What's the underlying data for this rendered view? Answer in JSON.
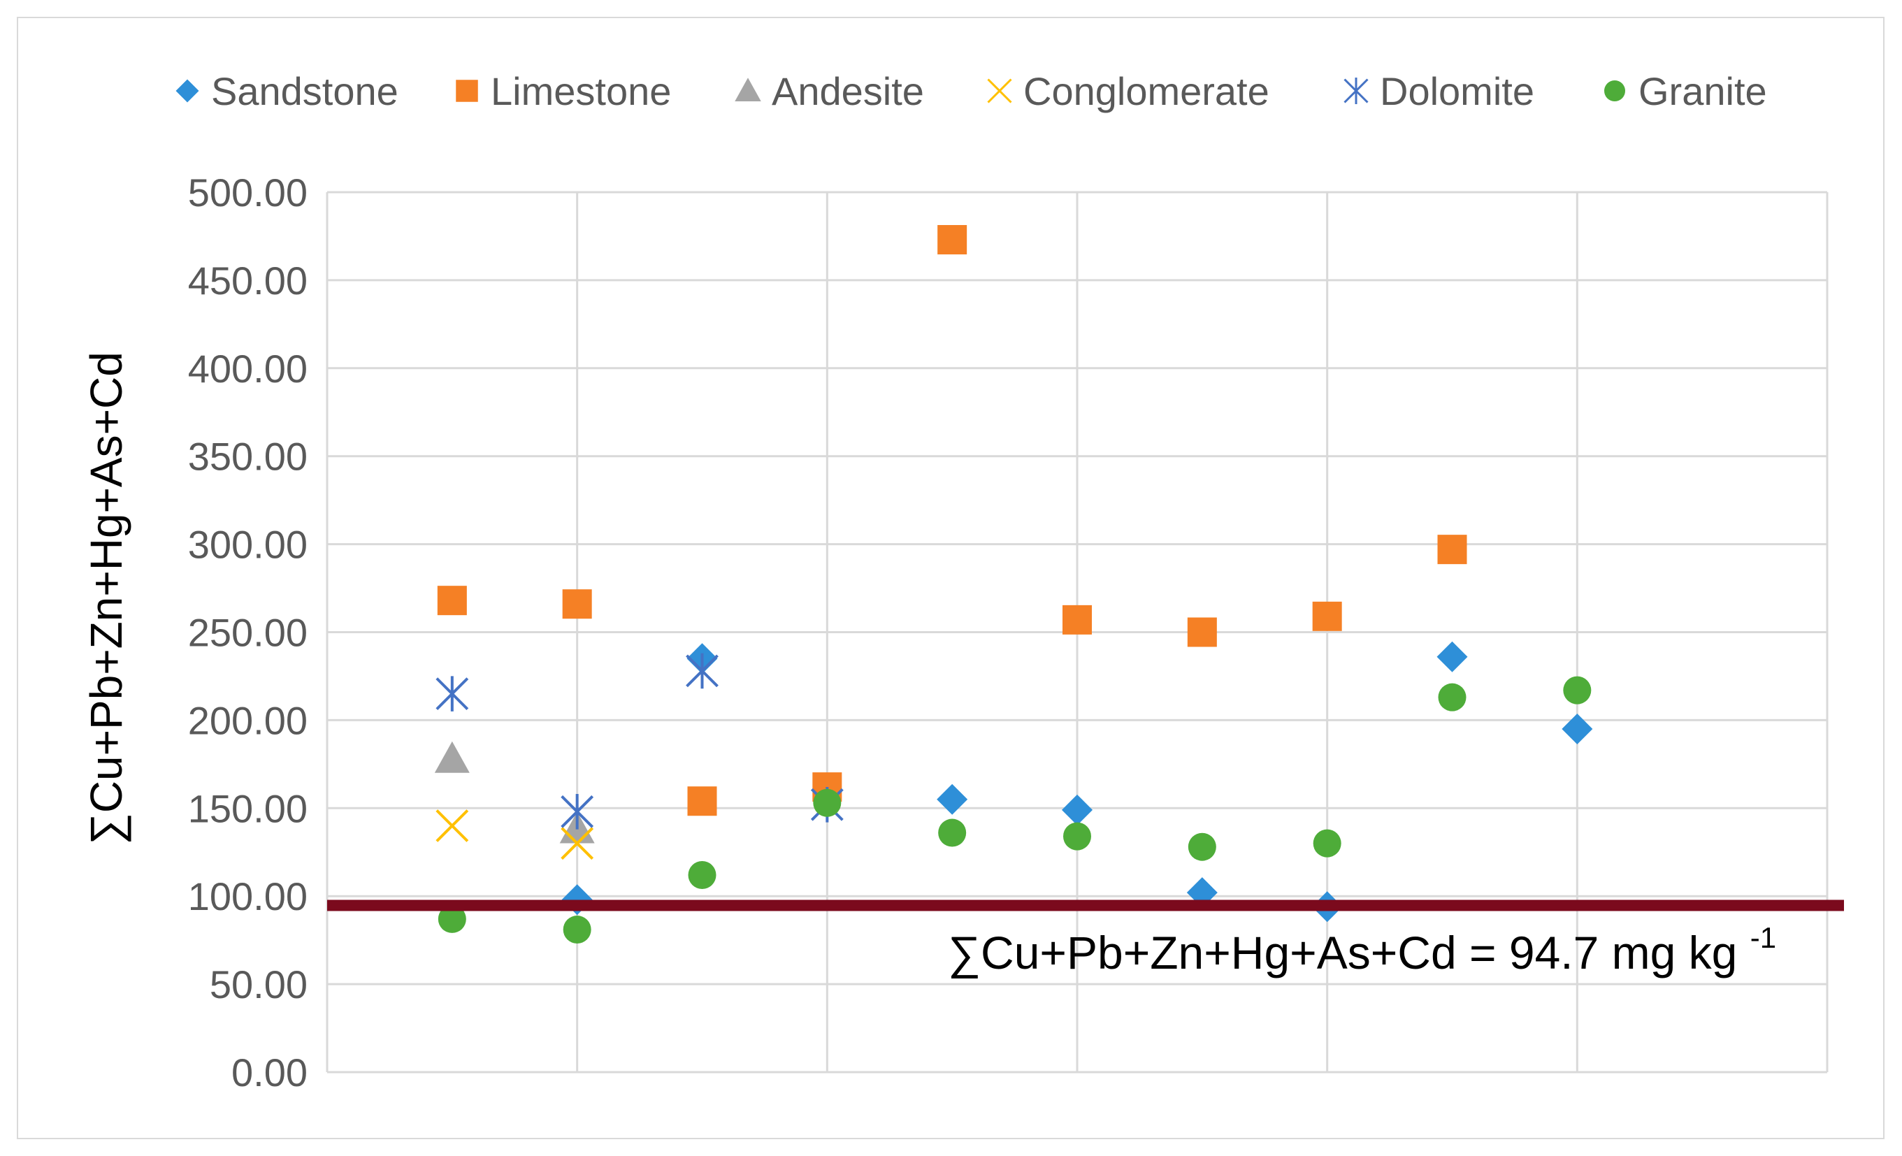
{
  "chart_data": {
    "type": "scatter",
    "title": "",
    "xlabel": "",
    "ylabel": "∑Cu+Pb+Zn+Hg+As+Cd",
    "ylim": [
      0,
      500
    ],
    "xlim": [
      0,
      12
    ],
    "y_ticks": [
      "0.00",
      "50.00",
      "100.00",
      "150.00",
      "200.00",
      "250.00",
      "300.00",
      "350.00",
      "400.00",
      "450.00",
      "500.00"
    ],
    "grid": true,
    "legend_position": "top",
    "threshold": {
      "value": 94.7,
      "label_main": "∑Cu+Pb+Zn+Hg+As+Cd = 94.7 mg kg",
      "label_sup": "-1",
      "color": "#7b0a1d"
    },
    "series": [
      {
        "name": "Sandstone",
        "marker": "diamond",
        "color": "#2e8fd8",
        "points": [
          [
            2,
            98
          ],
          [
            3,
            235
          ],
          [
            5,
            155
          ],
          [
            6,
            149
          ],
          [
            7,
            102
          ],
          [
            8,
            94
          ],
          [
            9,
            236
          ],
          [
            10,
            195
          ]
        ]
      },
      {
        "name": "Limestone",
        "marker": "square",
        "color": "#f58025",
        "points": [
          [
            1,
            268
          ],
          [
            2,
            266
          ],
          [
            3,
            154
          ],
          [
            4,
            162
          ],
          [
            5,
            473
          ],
          [
            6,
            257
          ],
          [
            7,
            250
          ],
          [
            8,
            259
          ],
          [
            9,
            297
          ]
        ]
      },
      {
        "name": "Andesite",
        "marker": "triangle",
        "color": "#a5a5a5",
        "points": [
          [
            1,
            178
          ],
          [
            2,
            138
          ]
        ]
      },
      {
        "name": "Conglomerate",
        "marker": "x",
        "color": "#ffc000",
        "points": [
          [
            1,
            140
          ],
          [
            2,
            130
          ]
        ]
      },
      {
        "name": "Dolomite",
        "marker": "asterisk",
        "color": "#4472c4",
        "points": [
          [
            1,
            215
          ],
          [
            2,
            148
          ],
          [
            3,
            228
          ],
          [
            4,
            152
          ]
        ]
      },
      {
        "name": "Granite",
        "marker": "circle",
        "color": "#4eac39",
        "points": [
          [
            1,
            87
          ],
          [
            2,
            81
          ],
          [
            3,
            112
          ],
          [
            4,
            153
          ],
          [
            5,
            136
          ],
          [
            6,
            134
          ],
          [
            7,
            128
          ],
          [
            8,
            130
          ],
          [
            9,
            213
          ],
          [
            10,
            217
          ]
        ]
      }
    ]
  }
}
